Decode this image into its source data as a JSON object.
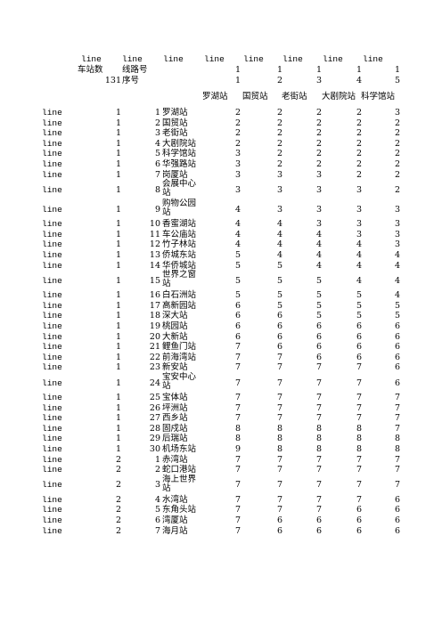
{
  "header": {
    "line_labels": [
      "line",
      "line",
      "line",
      "line",
      "line",
      "line",
      "line",
      "line"
    ],
    "count_label": "车站数",
    "route_label": "线路号",
    "count_value": "131",
    "seq_label": "序号",
    "top_ones": [
      "1",
      "1",
      "1",
      "1",
      "1"
    ],
    "top_idx": [
      "1",
      "2",
      "3",
      "4",
      "5"
    ],
    "stations": [
      "罗湖站",
      "国贸站",
      "老街站",
      "大剧院站",
      "科学馆站"
    ]
  },
  "rows": [
    {
      "line": "line",
      "route": "1",
      "seq": "1",
      "name": "罗湖站",
      "v": [
        "2",
        "2",
        "2",
        "2",
        "3"
      ]
    },
    {
      "line": "line",
      "route": "1",
      "seq": "2",
      "name": "国贸站",
      "v": [
        "2",
        "2",
        "2",
        "2",
        "2"
      ]
    },
    {
      "line": "line",
      "route": "1",
      "seq": "3",
      "name": "老街站",
      "v": [
        "2",
        "2",
        "2",
        "2",
        "2"
      ]
    },
    {
      "line": "line",
      "route": "1",
      "seq": "4",
      "name": "大剧院站",
      "v": [
        "2",
        "2",
        "2",
        "2",
        "2"
      ]
    },
    {
      "line": "line",
      "route": "1",
      "seq": "5",
      "name": "科学馆站",
      "v": [
        "3",
        "2",
        "2",
        "2",
        "2"
      ]
    },
    {
      "line": "line",
      "route": "1",
      "seq": "6",
      "name": "华强路站",
      "v": [
        "3",
        "2",
        "2",
        "2",
        "2"
      ]
    },
    {
      "line": "line",
      "route": "1",
      "seq": "7",
      "name": "岗厦站",
      "v": [
        "3",
        "3",
        "3",
        "2",
        "2"
      ]
    },
    {
      "line": "line",
      "route": "1",
      "seq": "8",
      "name": "会展中心站",
      "v": [
        "3",
        "3",
        "3",
        "3",
        "2"
      ]
    },
    {
      "line": "line",
      "route": "1",
      "seq": "9",
      "name": "购物公园站",
      "v": [
        "4",
        "3",
        "3",
        "3",
        "3"
      ]
    },
    {
      "line": "line",
      "route": "1",
      "seq": "10",
      "name": "香蜜湖站",
      "v": [
        "4",
        "4",
        "3",
        "3",
        "3"
      ]
    },
    {
      "line": "line",
      "route": "1",
      "seq": "11",
      "name": "车公庙站",
      "v": [
        "4",
        "4",
        "4",
        "3",
        "3"
      ]
    },
    {
      "line": "line",
      "route": "1",
      "seq": "12",
      "name": "竹子林站",
      "v": [
        "4",
        "4",
        "4",
        "4",
        "3"
      ]
    },
    {
      "line": "line",
      "route": "1",
      "seq": "13",
      "name": "侨城东站",
      "v": [
        "5",
        "4",
        "4",
        "4",
        "4"
      ]
    },
    {
      "line": "line",
      "route": "1",
      "seq": "14",
      "name": "华侨城站",
      "v": [
        "5",
        "5",
        "4",
        "4",
        "4"
      ]
    },
    {
      "line": "line",
      "route": "1",
      "seq": "15",
      "name": "世界之窗站",
      "v": [
        "5",
        "5",
        "5",
        "4",
        "4"
      ]
    },
    {
      "line": "line",
      "route": "1",
      "seq": "16",
      "name": "白石洲站",
      "v": [
        "5",
        "5",
        "5",
        "5",
        "4"
      ]
    },
    {
      "line": "line",
      "route": "1",
      "seq": "17",
      "name": "高新园站",
      "v": [
        "6",
        "5",
        "5",
        "5",
        "5"
      ]
    },
    {
      "line": "line",
      "route": "1",
      "seq": "18",
      "name": "深大站",
      "v": [
        "6",
        "6",
        "5",
        "5",
        "5"
      ]
    },
    {
      "line": "line",
      "route": "1",
      "seq": "19",
      "name": "桃园站",
      "v": [
        "6",
        "6",
        "6",
        "6",
        "6"
      ]
    },
    {
      "line": "line",
      "route": "1",
      "seq": "20",
      "name": "大新站",
      "v": [
        "6",
        "6",
        "6",
        "6",
        "6"
      ]
    },
    {
      "line": "line",
      "route": "1",
      "seq": "21",
      "name": "鲤鱼门站",
      "v": [
        "7",
        "6",
        "6",
        "6",
        "6"
      ]
    },
    {
      "line": "line",
      "route": "1",
      "seq": "22",
      "name": "前海湾站",
      "v": [
        "7",
        "7",
        "6",
        "6",
        "6"
      ]
    },
    {
      "line": "line",
      "route": "1",
      "seq": "23",
      "name": "新安站",
      "v": [
        "7",
        "7",
        "7",
        "7",
        "6"
      ]
    },
    {
      "line": "line",
      "route": "1",
      "seq": "24",
      "name": "宝安中心站",
      "v": [
        "7",
        "7",
        "7",
        "7",
        "6"
      ]
    },
    {
      "line": "line",
      "route": "1",
      "seq": "25",
      "name": "宝体站",
      "v": [
        "7",
        "7",
        "7",
        "7",
        "7"
      ]
    },
    {
      "line": "line",
      "route": "1",
      "seq": "26",
      "name": "坪洲站",
      "v": [
        "7",
        "7",
        "7",
        "7",
        "7"
      ]
    },
    {
      "line": "line",
      "route": "1",
      "seq": "27",
      "name": "西乡站",
      "v": [
        "7",
        "7",
        "7",
        "7",
        "7"
      ]
    },
    {
      "line": "line",
      "route": "1",
      "seq": "28",
      "name": "固戍站",
      "v": [
        "8",
        "8",
        "8",
        "8",
        "7"
      ]
    },
    {
      "line": "line",
      "route": "1",
      "seq": "29",
      "name": "后瑞站",
      "v": [
        "8",
        "8",
        "8",
        "8",
        "8"
      ]
    },
    {
      "line": "line",
      "route": "1",
      "seq": "30",
      "name": "机场东站",
      "v": [
        "9",
        "8",
        "8",
        "8",
        "8"
      ]
    },
    {
      "line": "line",
      "route": "2",
      "seq": "1",
      "name": "赤湾站",
      "v": [
        "7",
        "7",
        "7",
        "7",
        "7"
      ]
    },
    {
      "line": "line",
      "route": "2",
      "seq": "2",
      "name": "蛇口港站",
      "v": [
        "7",
        "7",
        "7",
        "7",
        "7"
      ]
    },
    {
      "line": "line",
      "route": "2",
      "seq": "3",
      "name": "海上世界站",
      "v": [
        "7",
        "7",
        "7",
        "7",
        "7"
      ]
    },
    {
      "line": "line",
      "route": "2",
      "seq": "4",
      "name": "水湾站",
      "v": [
        "7",
        "7",
        "7",
        "7",
        "6"
      ]
    },
    {
      "line": "line",
      "route": "2",
      "seq": "5",
      "name": "东角头站",
      "v": [
        "7",
        "7",
        "7",
        "6",
        "6"
      ]
    },
    {
      "line": "line",
      "route": "2",
      "seq": "6",
      "name": "湾厦站",
      "v": [
        "7",
        "6",
        "6",
        "6",
        "6"
      ]
    },
    {
      "line": "line",
      "route": "2",
      "seq": "7",
      "name": "海月站",
      "v": [
        "7",
        "6",
        "6",
        "6",
        "6"
      ]
    }
  ]
}
